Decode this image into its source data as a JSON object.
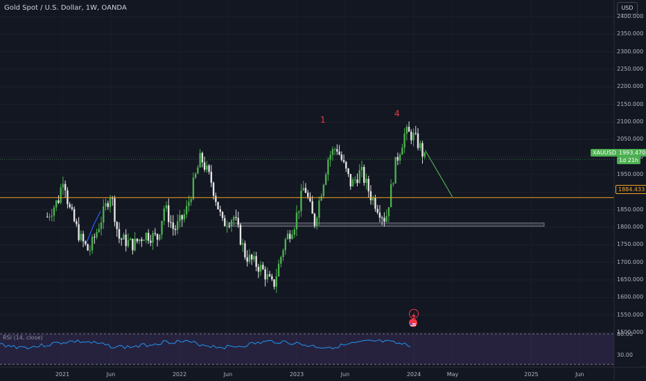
{
  "header": {
    "title": "Gold Spot / U.S. Dollar, 1W, OANDA",
    "currency_button": "USD"
  },
  "indicator": {
    "rsi_label": "RSI (14, close)"
  },
  "colors": {
    "background": "#131722",
    "candle_up": "#4caf50",
    "candle_down": "#e6e6e6",
    "price_line": "#f5a623",
    "current_price_tag": "#4caf50",
    "wave_label": "#f23645",
    "projection_line": "#4caf50"
  },
  "markers": {
    "wave_1": "1",
    "wave_4": "4",
    "flash_icon": "lightning-icon",
    "flag_icon": "us-flag-icon"
  },
  "price_tags": {
    "symbol": "XAUUSD",
    "current": "1993.470",
    "countdown": "1d 21h",
    "level": "1884.433"
  },
  "chart_data": {
    "type": "candlestick",
    "title": "Gold Spot / U.S. Dollar, 1W, OANDA",
    "ylim": [
      1470,
      2440
    ],
    "y_ticks": [
      "2400.000",
      "2350.000",
      "2300.000",
      "2250.000",
      "2200.000",
      "2150.000",
      "2100.000",
      "2050.000",
      "2000.000",
      "1950.000",
      "1900.000",
      "1850.000",
      "1800.000",
      "1750.000",
      "1700.000",
      "1650.000",
      "1600.000",
      "1550.000",
      "1500.000"
    ],
    "x_ticks": [
      "2021",
      "Jun",
      "2022",
      "Jun",
      "2023",
      "Jun",
      "2024",
      "May",
      "2025",
      "Jun"
    ],
    "horizontal_level": 1884.433,
    "current_price": 1993.47,
    "rsi_levels": [
      "80.00",
      "30.00"
    ],
    "close_path": [
      {
        "date": "2020-11-15",
        "close": 1830
      },
      {
        "date": "2020-12-20",
        "close": 1880
      },
      {
        "date": "2021-01-05",
        "close": 1950
      },
      {
        "date": "2021-01-20",
        "close": 1860
      },
      {
        "date": "2021-02-25",
        "close": 1770
      },
      {
        "date": "2021-03-25",
        "close": 1730
      },
      {
        "date": "2021-05-01",
        "close": 1820
      },
      {
        "date": "2021-06-01",
        "close": 1900
      },
      {
        "date": "2021-06-25",
        "close": 1770
      },
      {
        "date": "2021-08-10",
        "close": 1750
      },
      {
        "date": "2021-09-15",
        "close": 1780
      },
      {
        "date": "2021-10-25",
        "close": 1770
      },
      {
        "date": "2021-11-15",
        "close": 1860
      },
      {
        "date": "2021-12-15",
        "close": 1790
      },
      {
        "date": "2022-01-20",
        "close": 1840
      },
      {
        "date": "2022-03-08",
        "close": 2000
      },
      {
        "date": "2022-04-10",
        "close": 1930
      },
      {
        "date": "2022-05-15",
        "close": 1810
      },
      {
        "date": "2022-06-20",
        "close": 1830
      },
      {
        "date": "2022-07-25",
        "close": 1720
      },
      {
        "date": "2022-09-15",
        "close": 1680
      },
      {
        "date": "2022-10-20",
        "close": 1630
      },
      {
        "date": "2022-11-25",
        "close": 1760
      },
      {
        "date": "2022-12-25",
        "close": 1810
      },
      {
        "date": "2023-01-25",
        "close": 1920
      },
      {
        "date": "2023-02-25",
        "close": 1810
      },
      {
        "date": "2023-04-10",
        "close": 2000
      },
      {
        "date": "2023-05-05",
        "close": 2030
      },
      {
        "date": "2023-06-20",
        "close": 1920
      },
      {
        "date": "2023-07-20",
        "close": 1960
      },
      {
        "date": "2023-08-20",
        "close": 1890
      },
      {
        "date": "2023-10-05",
        "close": 1820
      },
      {
        "date": "2023-11-05",
        "close": 1980
      },
      {
        "date": "2023-12-05",
        "close": 2070
      },
      {
        "date": "2023-12-30",
        "close": 2060
      },
      {
        "date": "2024-01-20",
        "close": 2030
      },
      {
        "date": "2024-02-05",
        "close": 1993
      }
    ]
  }
}
